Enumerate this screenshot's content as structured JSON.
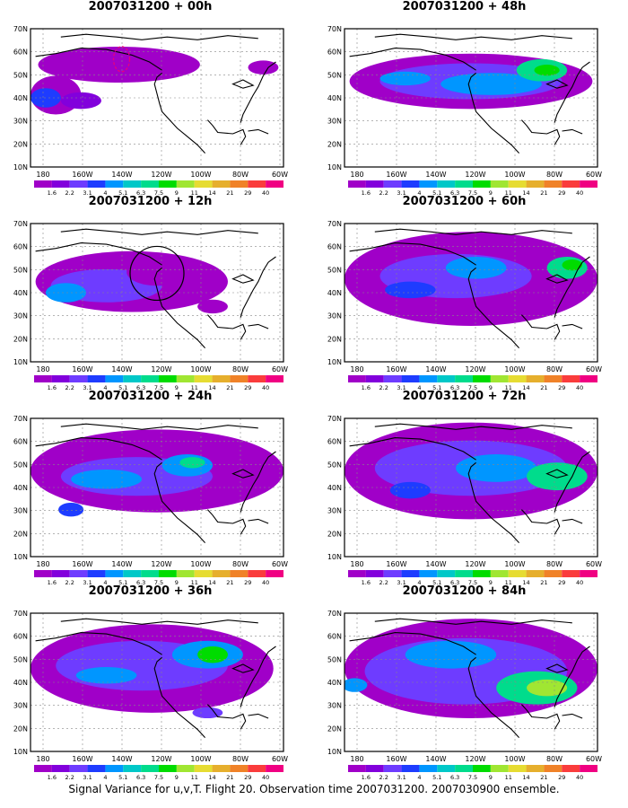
{
  "footer": "Signal Variance for u,v,T. Flight 20. Observation time 2007031200. 2007030900 ensemble.",
  "lat_labels": [
    "70N",
    "60N",
    "50N",
    "40N",
    "30N",
    "20N",
    "10N"
  ],
  "lon_labels": [
    "180",
    "160W",
    "140W",
    "120W",
    "100W",
    "80W",
    "60W"
  ],
  "colorbar": {
    "labels": [
      "1.6",
      "2.2",
      "3.1",
      "4",
      "5.1",
      "6.3",
      "7.5",
      "9",
      "11",
      "14",
      "21",
      "29",
      "40"
    ],
    "colors": [
      "#a000c8",
      "#8200dc",
      "#6e3cff",
      "#1e3cff",
      "#0096ff",
      "#00c8c8",
      "#00dc8c",
      "#00dc00",
      "#a0e632",
      "#e6dc32",
      "#e6af2d",
      "#f08228",
      "#fa3c3c",
      "#f00082"
    ]
  },
  "panels": [
    {
      "title": "2007031200 + 00h"
    },
    {
      "title": "2007031200 + 48h"
    },
    {
      "title": "2007031200 + 12h"
    },
    {
      "title": "2007031200 + 60h"
    },
    {
      "title": "2007031200 + 24h"
    },
    {
      "title": "2007031200 + 72h"
    },
    {
      "title": "2007031200 + 36h"
    },
    {
      "title": "2007031200 + 84h"
    }
  ]
}
